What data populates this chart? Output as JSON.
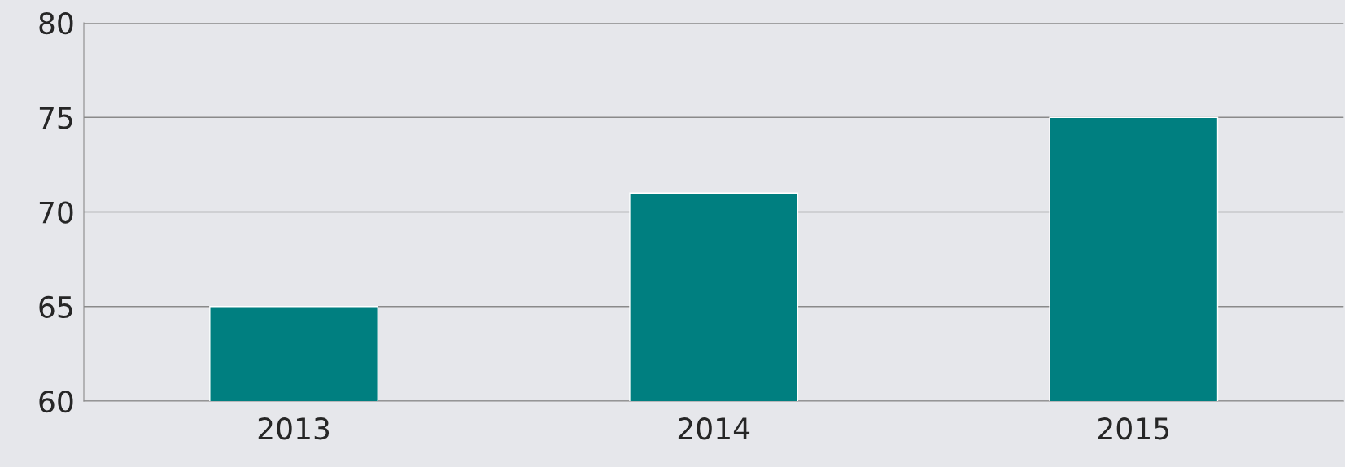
{
  "chart_data": {
    "type": "bar",
    "categories": [
      "2013",
      "2014",
      "2015"
    ],
    "values": [
      65,
      71,
      75
    ],
    "color": "#007f80",
    "ylim": [
      60,
      80
    ],
    "yticks": [
      60,
      65,
      70,
      75,
      80
    ],
    "grid": "y"
  }
}
